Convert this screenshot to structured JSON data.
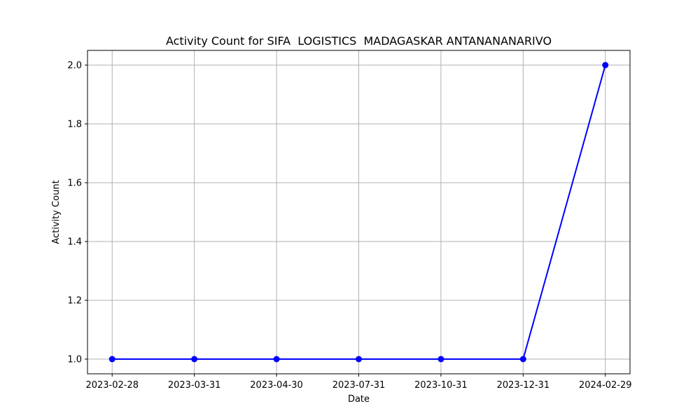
{
  "chart_data": {
    "type": "line",
    "title": "Activity Count for SIFA  LOGISTICS  MADAGASKAR ANTANANANARIVO",
    "xlabel": "Date",
    "ylabel": "Activity Count",
    "categories": [
      "2023-02-28",
      "2023-03-31",
      "2023-04-30",
      "2023-07-31",
      "2023-10-31",
      "2023-12-31",
      "2024-02-29"
    ],
    "series": [
      {
        "values": [
          1,
          1,
          1,
          1,
          1,
          1,
          2
        ],
        "color": "#0000ff",
        "marker": "circle"
      }
    ],
    "ylim": [
      0.95,
      2.05
    ],
    "yticks": [
      1.0,
      1.2,
      1.4,
      1.6,
      1.8,
      2.0
    ],
    "ytick_labels": [
      "1.0",
      "1.2",
      "1.4",
      "1.6",
      "1.8",
      "2.0"
    ],
    "grid": true,
    "grid_color": "#b0b0b0"
  }
}
